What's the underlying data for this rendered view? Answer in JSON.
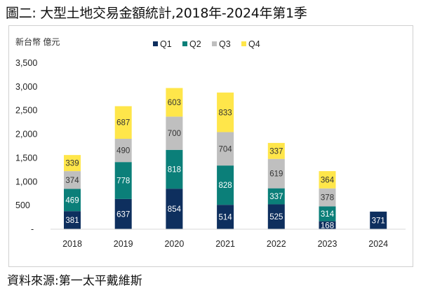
{
  "title": "圖二: 大型土地交易金額統計,2018年-2024年第1季",
  "source": "資料來源:第一太平戴維斯",
  "chart_data": {
    "type": "bar",
    "stacked": true,
    "title": "",
    "ylabel": "新台幣 億元",
    "xlabel": "",
    "ylim": [
      0,
      3500
    ],
    "yticks": [
      0,
      500,
      1000,
      1500,
      2000,
      2500,
      3000,
      3500
    ],
    "ytick_labels": [
      "-",
      "500",
      "1,000",
      "1,500",
      "2,000",
      "2,500",
      "3,000",
      "3,500"
    ],
    "grid": false,
    "legend_position": "top-center",
    "categories": [
      "2018",
      "2019",
      "2020",
      "2021",
      "2022",
      "2023",
      "2024"
    ],
    "series": [
      {
        "name": "Q1",
        "color": "#0e2f5e",
        "values": [
          381,
          637,
          854,
          514,
          525,
          168,
          371
        ]
      },
      {
        "name": "Q2",
        "color": "#0b7f79",
        "values": [
          469,
          778,
          818,
          828,
          337,
          314,
          null
        ]
      },
      {
        "name": "Q3",
        "color": "#bfbfbf",
        "values": [
          374,
          490,
          700,
          704,
          619,
          378,
          null
        ]
      },
      {
        "name": "Q4",
        "color": "#ffe64a",
        "values": [
          339,
          687,
          603,
          833,
          337,
          364,
          null
        ]
      }
    ]
  }
}
